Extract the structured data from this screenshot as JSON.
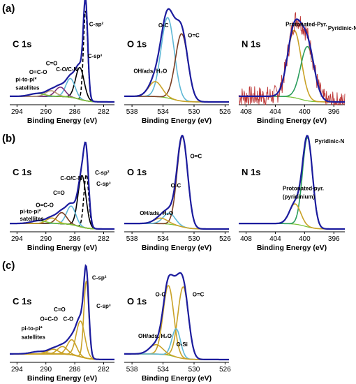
{
  "figure": {
    "rows": [
      {
        "label": "(a)"
      },
      {
        "label": "(b)"
      },
      {
        "label": "(c)"
      }
    ]
  },
  "colors": {
    "envelope": "#1c1c9e",
    "raw": "#b52020",
    "sp2_fit": "#000000",
    "gold": "#c9a227",
    "cyan": "#5fb8d6",
    "tan": "#b89a72",
    "brown": "#7a3e22",
    "green": "#2a9d5c",
    "purple": "#7a2f7a",
    "lime": "#7cc43c",
    "axis": "#000000"
  },
  "chart_data": [
    {
      "id": "a-C1s",
      "type": "line",
      "row": 0,
      "col": 0,
      "core_level": "C 1s",
      "xlabel": "Binding Energy (eV)",
      "xlim": [
        295,
        280.5
      ],
      "ylim": [
        0,
        1.06
      ],
      "xticks": [
        294,
        290,
        286,
        282
      ],
      "peaks": [
        {
          "label": "C-sp²",
          "center": 284.5,
          "fwhm": 0.7,
          "amp": 0.96,
          "color": "sp2_fit",
          "dashed": true
        },
        {
          "label": "C-sp³",
          "center": 285.3,
          "fwhm": 1.4,
          "amp": 0.34,
          "color": "sp2_fit",
          "dashed": false
        },
        {
          "label": "C-O/C-N",
          "center": 286.6,
          "fwhm": 1.5,
          "amp": 0.2,
          "color": "cyan",
          "dashed": false
        },
        {
          "label": "C=O",
          "center": 288.0,
          "fwhm": 1.6,
          "amp": 0.1,
          "color": "purple",
          "dashed": false
        },
        {
          "label": "O=C-O",
          "center": 289.3,
          "fwhm": 1.7,
          "amp": 0.06,
          "color": "tan",
          "dashed": false
        },
        {
          "label": "pi-to-pi* satellites",
          "center": 291.2,
          "fwhm": 2.4,
          "amp": 0.03,
          "color": "lime",
          "dashed": false
        }
      ],
      "annotations": [
        {
          "text": "C-sp²",
          "ex": 284.0,
          "ey": 0.84
        },
        {
          "text": "C-sp³",
          "ex": 284.2,
          "ey": 0.5
        },
        {
          "text": "C-O/C-N",
          "ex": 288.6,
          "ey": 0.36
        },
        {
          "text": "C=O",
          "ex": 290.0,
          "ey": 0.42
        },
        {
          "text": "O=C-O",
          "ex": 292.3,
          "ey": 0.33
        },
        {
          "text": "pi-to-pi*",
          "ex": 294.2,
          "ey": 0.25
        },
        {
          "text": "satellites",
          "ex": 294.2,
          "ey": 0.16
        }
      ]
    },
    {
      "id": "a-O1s",
      "type": "line",
      "row": 0,
      "col": 1,
      "core_level": "O 1s",
      "xlabel": "Binding Energy (eV)",
      "xlim": [
        539,
        525.5
      ],
      "ylim": [
        0,
        1.06
      ],
      "xticks": [
        538,
        534,
        530,
        526
      ],
      "peaks": [
        {
          "label": "O-C",
          "center": 533.4,
          "fwhm": 2.0,
          "amp": 0.86,
          "color": "cyan",
          "dashed": false
        },
        {
          "label": "O=C",
          "center": 531.6,
          "fwhm": 1.9,
          "amp": 0.72,
          "color": "brown",
          "dashed": false
        },
        {
          "label": "OH/ads. H₂O",
          "center": 535.0,
          "fwhm": 2.0,
          "amp": 0.16,
          "color": "gold",
          "dashed": false
        }
      ],
      "annotations": [
        {
          "text": "O-C",
          "ex": 534.6,
          "ey": 0.83
        },
        {
          "text": "O=C",
          "ex": 530.8,
          "ey": 0.72
        },
        {
          "text": "OH/ads. H₂O",
          "ex": 537.8,
          "ey": 0.34
        }
      ]
    },
    {
      "id": "a-N1s",
      "type": "line",
      "row": 0,
      "col": 2,
      "core_level": "N 1s",
      "xlabel": "Binding Energy (eV)",
      "xlim": [
        409,
        394.5
      ],
      "ylim": [
        0,
        1.06
      ],
      "xticks": [
        408,
        404,
        400,
        396
      ],
      "noisy": true,
      "peaks": [
        {
          "label": "Protonated-Pyr.",
          "center": 401.4,
          "fwhm": 2.2,
          "amp": 0.72,
          "color": "gold",
          "dashed": false
        },
        {
          "label": "Pyridinic-N",
          "center": 399.6,
          "fwhm": 2.2,
          "amp": 0.58,
          "color": "green",
          "dashed": false
        }
      ],
      "annotations": [
        {
          "text": "Protonated-Pyr.",
          "ex": 402.6,
          "ey": 0.84
        },
        {
          "text": "Pyridinic-N",
          "ex": 396.8,
          "ey": 0.8
        }
      ]
    },
    {
      "id": "b-C1s",
      "type": "line",
      "row": 1,
      "col": 0,
      "core_level": "C 1s",
      "xlabel": "Binding Energy (eV)",
      "xlim": [
        295,
        280.5
      ],
      "ylim": [
        0,
        1.06
      ],
      "xticks": [
        294,
        290,
        286,
        282
      ],
      "peaks": [
        {
          "label": "C-sp²",
          "center": 284.4,
          "fwhm": 0.8,
          "amp": 0.58,
          "color": "sp2_fit",
          "dashed": true
        },
        {
          "label": "C-sp³",
          "center": 285.0,
          "fwhm": 1.3,
          "amp": 0.56,
          "color": "sp2_fit",
          "dashed": false
        },
        {
          "label": "C-O/C-N",
          "center": 286.5,
          "fwhm": 1.5,
          "amp": 0.2,
          "color": "cyan",
          "dashed": false
        },
        {
          "label": "C=O",
          "center": 287.8,
          "fwhm": 1.6,
          "amp": 0.12,
          "color": "brown",
          "dashed": false
        },
        {
          "label": "O=C-O",
          "center": 289.2,
          "fwhm": 1.7,
          "amp": 0.06,
          "color": "gold",
          "dashed": false
        },
        {
          "label": "pi-to-pi* satellites",
          "center": 291.0,
          "fwhm": 2.4,
          "amp": 0.03,
          "color": "lime",
          "dashed": false
        }
      ],
      "annotations": [
        {
          "text": "C-sp²",
          "ex": 283.2,
          "ey": 0.62
        },
        {
          "text": "C-sp³",
          "ex": 283.0,
          "ey": 0.5
        },
        {
          "text": "C-O/C-N",
          "ex": 288.0,
          "ey": 0.56
        },
        {
          "text": "C=O",
          "ex": 289.0,
          "ey": 0.4
        },
        {
          "text": "O=C-O",
          "ex": 291.4,
          "ey": 0.27
        },
        {
          "text": "pi-to-pi*",
          "ex": 293.6,
          "ey": 0.2
        },
        {
          "text": "satellites",
          "ex": 293.6,
          "ey": 0.12
        }
      ]
    },
    {
      "id": "b-O1s",
      "type": "line",
      "row": 1,
      "col": 1,
      "core_level": "O 1s",
      "xlabel": "Binding Energy (eV)",
      "xlim": [
        539,
        525.5
      ],
      "ylim": [
        0,
        1.06
      ],
      "xticks": [
        538,
        534,
        530,
        526
      ],
      "peaks": [
        {
          "label": "O=C",
          "center": 531.5,
          "fwhm": 1.6,
          "amp": 0.98,
          "color": "brown",
          "dashed": false
        },
        {
          "label": "O-C",
          "center": 533.2,
          "fwhm": 1.8,
          "amp": 0.12,
          "color": "cyan",
          "dashed": false
        },
        {
          "label": "OH/ads. H₂O",
          "center": 534.3,
          "fwhm": 2.0,
          "amp": 0.06,
          "color": "gold",
          "dashed": false
        }
      ],
      "annotations": [
        {
          "text": "O=C",
          "ex": 530.5,
          "ey": 0.8
        },
        {
          "text": "O-C",
          "ex": 533.0,
          "ey": 0.48
        },
        {
          "text": "OH/ads. H₂O",
          "ex": 537.0,
          "ey": 0.18
        }
      ]
    },
    {
      "id": "b-N1s",
      "type": "line",
      "row": 1,
      "col": 2,
      "core_level": "N 1s",
      "xlabel": "Binding Energy (eV)",
      "xlim": [
        409,
        394.5
      ],
      "ylim": [
        0,
        1.06
      ],
      "xticks": [
        408,
        404,
        400,
        396
      ],
      "peaks": [
        {
          "label": "Pyridinic-N",
          "center": 399.6,
          "fwhm": 1.6,
          "amp": 0.97,
          "color": "green",
          "dashed": false
        },
        {
          "label": "Protonated-pyr. (pyridinium)",
          "center": 401.3,
          "fwhm": 1.8,
          "amp": 0.22,
          "color": "gold",
          "dashed": false
        }
      ],
      "annotations": [
        {
          "text": "Pyridinic-N",
          "ex": 398.6,
          "ey": 0.96
        },
        {
          "text": "Protonated-pyr.",
          "ex": 403.0,
          "ey": 0.45
        },
        {
          "text": "(pyridinium)",
          "ex": 403.0,
          "ey": 0.36
        }
      ]
    },
    {
      "id": "c-C1s",
      "type": "line",
      "row": 2,
      "col": 0,
      "core_level": "C 1s",
      "xlabel": "Binding Energy (eV)",
      "xlim": [
        295,
        280.5
      ],
      "ylim": [
        0,
        1.06
      ],
      "xticks": [
        294,
        290,
        286,
        282
      ],
      "peaks": [
        {
          "label": "C-sp²",
          "center": 284.4,
          "fwhm": 0.8,
          "amp": 0.82,
          "color": "gold",
          "dashed": false
        },
        {
          "label": "C-sp³",
          "center": 285.2,
          "fwhm": 1.4,
          "amp": 0.38,
          "color": "gold",
          "dashed": false
        },
        {
          "label": "C-O",
          "center": 286.4,
          "fwhm": 1.5,
          "amp": 0.16,
          "color": "gold",
          "dashed": false
        },
        {
          "label": "C=O",
          "center": 287.7,
          "fwhm": 1.6,
          "amp": 0.08,
          "color": "gold",
          "dashed": false
        },
        {
          "label": "O=C-O",
          "center": 289.0,
          "fwhm": 1.7,
          "amp": 0.05,
          "color": "gold",
          "dashed": false
        },
        {
          "label": "pi-to-pi* satellites",
          "center": 291.0,
          "fwhm": 2.4,
          "amp": 0.025,
          "color": "gold",
          "dashed": false
        }
      ],
      "annotations": [
        {
          "text": "C-sp²",
          "ex": 283.6,
          "ey": 0.88
        },
        {
          "text": "C-sp³",
          "ex": 283.0,
          "ey": 0.58
        },
        {
          "text": "C-O",
          "ex": 287.6,
          "ey": 0.44
        },
        {
          "text": "C=O",
          "ex": 288.9,
          "ey": 0.54
        },
        {
          "text": "O=C-O",
          "ex": 290.8,
          "ey": 0.44
        },
        {
          "text": "pi-to-pi*",
          "ex": 293.4,
          "ey": 0.34
        },
        {
          "text": "satellites",
          "ex": 293.4,
          "ey": 0.25
        }
      ]
    },
    {
      "id": "c-O1s",
      "type": "line",
      "row": 2,
      "col": 1,
      "core_level": "O 1s",
      "xlabel": "Binding Energy (eV)",
      "xlim": [
        539,
        525.5
      ],
      "ylim": [
        0,
        1.06
      ],
      "xticks": [
        538,
        534,
        530,
        526
      ],
      "peaks": [
        {
          "label": "O-C",
          "center": 533.3,
          "fwhm": 1.6,
          "amp": 0.74,
          "color": "gold",
          "dashed": false
        },
        {
          "label": "O=C",
          "center": 531.4,
          "fwhm": 1.6,
          "amp": 0.76,
          "color": "gold",
          "dashed": false
        },
        {
          "label": "O-Si",
          "center": 532.3,
          "fwhm": 1.3,
          "amp": 0.3,
          "color": "cyan",
          "dashed": false
        },
        {
          "label": "OH/ads. H₂O",
          "center": 534.9,
          "fwhm": 2.0,
          "amp": 0.1,
          "color": "gold",
          "dashed": false
        }
      ],
      "annotations": [
        {
          "text": "O-C",
          "ex": 535.0,
          "ey": 0.7
        },
        {
          "text": "O=C",
          "ex": 530.2,
          "ey": 0.7
        },
        {
          "text": "O-Si",
          "ex": 532.3,
          "ey": 0.17
        },
        {
          "text": "OH/ads. H₂O",
          "ex": 537.2,
          "ey": 0.26
        }
      ]
    }
  ]
}
